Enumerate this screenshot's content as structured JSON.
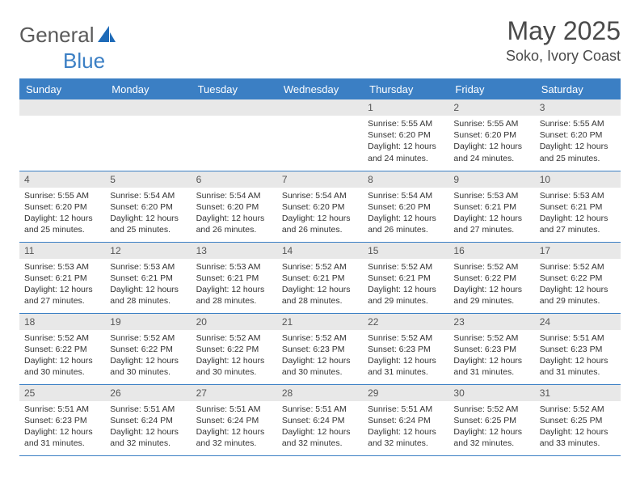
{
  "brand": {
    "part1": "General",
    "part2": "Blue"
  },
  "title": "May 2025",
  "location": "Soko, Ivory Coast",
  "colors": {
    "header_bg": "#3b7fc4",
    "header_fg": "#ffffff",
    "daynum_bg": "#e8e8e8",
    "rule": "#3b7fc4",
    "text": "#333333",
    "logo_gray": "#5a5a5a",
    "logo_blue": "#3b7fc4"
  },
  "weekdays": [
    "Sunday",
    "Monday",
    "Tuesday",
    "Wednesday",
    "Thursday",
    "Friday",
    "Saturday"
  ],
  "weeks": [
    [
      null,
      null,
      null,
      null,
      {
        "n": "1",
        "sr": "Sunrise: 5:55 AM",
        "ss": "Sunset: 6:20 PM",
        "d1": "Daylight: 12 hours",
        "d2": "and 24 minutes."
      },
      {
        "n": "2",
        "sr": "Sunrise: 5:55 AM",
        "ss": "Sunset: 6:20 PM",
        "d1": "Daylight: 12 hours",
        "d2": "and 24 minutes."
      },
      {
        "n": "3",
        "sr": "Sunrise: 5:55 AM",
        "ss": "Sunset: 6:20 PM",
        "d1": "Daylight: 12 hours",
        "d2": "and 25 minutes."
      }
    ],
    [
      {
        "n": "4",
        "sr": "Sunrise: 5:55 AM",
        "ss": "Sunset: 6:20 PM",
        "d1": "Daylight: 12 hours",
        "d2": "and 25 minutes."
      },
      {
        "n": "5",
        "sr": "Sunrise: 5:54 AM",
        "ss": "Sunset: 6:20 PM",
        "d1": "Daylight: 12 hours",
        "d2": "and 25 minutes."
      },
      {
        "n": "6",
        "sr": "Sunrise: 5:54 AM",
        "ss": "Sunset: 6:20 PM",
        "d1": "Daylight: 12 hours",
        "d2": "and 26 minutes."
      },
      {
        "n": "7",
        "sr": "Sunrise: 5:54 AM",
        "ss": "Sunset: 6:20 PM",
        "d1": "Daylight: 12 hours",
        "d2": "and 26 minutes."
      },
      {
        "n": "8",
        "sr": "Sunrise: 5:54 AM",
        "ss": "Sunset: 6:20 PM",
        "d1": "Daylight: 12 hours",
        "d2": "and 26 minutes."
      },
      {
        "n": "9",
        "sr": "Sunrise: 5:53 AM",
        "ss": "Sunset: 6:21 PM",
        "d1": "Daylight: 12 hours",
        "d2": "and 27 minutes."
      },
      {
        "n": "10",
        "sr": "Sunrise: 5:53 AM",
        "ss": "Sunset: 6:21 PM",
        "d1": "Daylight: 12 hours",
        "d2": "and 27 minutes."
      }
    ],
    [
      {
        "n": "11",
        "sr": "Sunrise: 5:53 AM",
        "ss": "Sunset: 6:21 PM",
        "d1": "Daylight: 12 hours",
        "d2": "and 27 minutes."
      },
      {
        "n": "12",
        "sr": "Sunrise: 5:53 AM",
        "ss": "Sunset: 6:21 PM",
        "d1": "Daylight: 12 hours",
        "d2": "and 28 minutes."
      },
      {
        "n": "13",
        "sr": "Sunrise: 5:53 AM",
        "ss": "Sunset: 6:21 PM",
        "d1": "Daylight: 12 hours",
        "d2": "and 28 minutes."
      },
      {
        "n": "14",
        "sr": "Sunrise: 5:52 AM",
        "ss": "Sunset: 6:21 PM",
        "d1": "Daylight: 12 hours",
        "d2": "and 28 minutes."
      },
      {
        "n": "15",
        "sr": "Sunrise: 5:52 AM",
        "ss": "Sunset: 6:21 PM",
        "d1": "Daylight: 12 hours",
        "d2": "and 29 minutes."
      },
      {
        "n": "16",
        "sr": "Sunrise: 5:52 AM",
        "ss": "Sunset: 6:22 PM",
        "d1": "Daylight: 12 hours",
        "d2": "and 29 minutes."
      },
      {
        "n": "17",
        "sr": "Sunrise: 5:52 AM",
        "ss": "Sunset: 6:22 PM",
        "d1": "Daylight: 12 hours",
        "d2": "and 29 minutes."
      }
    ],
    [
      {
        "n": "18",
        "sr": "Sunrise: 5:52 AM",
        "ss": "Sunset: 6:22 PM",
        "d1": "Daylight: 12 hours",
        "d2": "and 30 minutes."
      },
      {
        "n": "19",
        "sr": "Sunrise: 5:52 AM",
        "ss": "Sunset: 6:22 PM",
        "d1": "Daylight: 12 hours",
        "d2": "and 30 minutes."
      },
      {
        "n": "20",
        "sr": "Sunrise: 5:52 AM",
        "ss": "Sunset: 6:22 PM",
        "d1": "Daylight: 12 hours",
        "d2": "and 30 minutes."
      },
      {
        "n": "21",
        "sr": "Sunrise: 5:52 AM",
        "ss": "Sunset: 6:23 PM",
        "d1": "Daylight: 12 hours",
        "d2": "and 30 minutes."
      },
      {
        "n": "22",
        "sr": "Sunrise: 5:52 AM",
        "ss": "Sunset: 6:23 PM",
        "d1": "Daylight: 12 hours",
        "d2": "and 31 minutes."
      },
      {
        "n": "23",
        "sr": "Sunrise: 5:52 AM",
        "ss": "Sunset: 6:23 PM",
        "d1": "Daylight: 12 hours",
        "d2": "and 31 minutes."
      },
      {
        "n": "24",
        "sr": "Sunrise: 5:51 AM",
        "ss": "Sunset: 6:23 PM",
        "d1": "Daylight: 12 hours",
        "d2": "and 31 minutes."
      }
    ],
    [
      {
        "n": "25",
        "sr": "Sunrise: 5:51 AM",
        "ss": "Sunset: 6:23 PM",
        "d1": "Daylight: 12 hours",
        "d2": "and 31 minutes."
      },
      {
        "n": "26",
        "sr": "Sunrise: 5:51 AM",
        "ss": "Sunset: 6:24 PM",
        "d1": "Daylight: 12 hours",
        "d2": "and 32 minutes."
      },
      {
        "n": "27",
        "sr": "Sunrise: 5:51 AM",
        "ss": "Sunset: 6:24 PM",
        "d1": "Daylight: 12 hours",
        "d2": "and 32 minutes."
      },
      {
        "n": "28",
        "sr": "Sunrise: 5:51 AM",
        "ss": "Sunset: 6:24 PM",
        "d1": "Daylight: 12 hours",
        "d2": "and 32 minutes."
      },
      {
        "n": "29",
        "sr": "Sunrise: 5:51 AM",
        "ss": "Sunset: 6:24 PM",
        "d1": "Daylight: 12 hours",
        "d2": "and 32 minutes."
      },
      {
        "n": "30",
        "sr": "Sunrise: 5:52 AM",
        "ss": "Sunset: 6:25 PM",
        "d1": "Daylight: 12 hours",
        "d2": "and 32 minutes."
      },
      {
        "n": "31",
        "sr": "Sunrise: 5:52 AM",
        "ss": "Sunset: 6:25 PM",
        "d1": "Daylight: 12 hours",
        "d2": "and 33 minutes."
      }
    ]
  ]
}
